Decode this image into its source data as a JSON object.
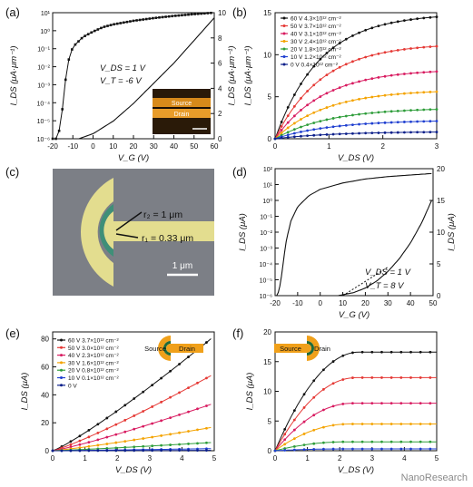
{
  "watermark": "NanoResearch",
  "colors": {
    "black": "#111111",
    "red": "#e53935",
    "magenta": "#d81b60",
    "orange": "#f4a300",
    "green": "#2e9d3a",
    "blue": "#1f3fd0",
    "navy": "#0b1f8a",
    "yellow": "#e3dd8f",
    "teal": "#3f8f78",
    "sem_bg": "#7c7f86",
    "device_orange": "#f0a01a",
    "device_green": "#1f6b3a"
  },
  "chart_data": [
    {
      "id": "a",
      "panel_label": "(a)",
      "type": "line",
      "xlabel": "V_G (V)",
      "ylabel_left": "I_DS (μA·μm⁻¹)",
      "ylabel_right": "I_DS (μA·μm⁻¹)",
      "xlim": [
        -20,
        60
      ],
      "xticks": [
        -20,
        -10,
        0,
        10,
        20,
        30,
        40,
        50,
        60
      ],
      "ylim_left_log": [
        -6,
        1
      ],
      "yticks_left": [
        "10⁻⁶",
        "10⁻⁵",
        "10⁻⁴",
        "10⁻³",
        "10⁻²",
        "10⁻¹",
        "10⁰",
        "10¹"
      ],
      "ylim_right": [
        0,
        10
      ],
      "yticks_right": [
        0,
        2,
        4,
        6,
        8,
        10
      ],
      "annotations": [
        "V_DS = 1 V",
        "V_T = -6 V"
      ],
      "inset_labels": [
        "Source",
        "Drain"
      ],
      "series": [
        {
          "name": "log",
          "x": [
            -20,
            -18,
            -17,
            -16,
            -15,
            -14,
            -12,
            -10,
            -5,
            0,
            5,
            10,
            20,
            30,
            40,
            50,
            60
          ],
          "y_log": [
            -6,
            -6,
            -5.7,
            -5,
            -4.2,
            -3,
            -1.6,
            -0.9,
            -0.35,
            -0.05,
            0.2,
            0.35,
            0.55,
            0.7,
            0.82,
            0.92,
            1.0
          ]
        },
        {
          "name": "linear",
          "x": [
            -7,
            0,
            10,
            20,
            30,
            40,
            50,
            60
          ],
          "y": [
            0,
            0.4,
            1.4,
            2.8,
            4.4,
            6.0,
            7.8,
            9.6
          ]
        }
      ]
    },
    {
      "id": "b",
      "panel_label": "(b)",
      "type": "line",
      "xlabel": "V_DS (V)",
      "ylabel": "I_DS (μA·μm⁻¹)",
      "xlim": [
        0,
        3
      ],
      "xticks": [
        0,
        1,
        2,
        3
      ],
      "ylim": [
        0,
        15
      ],
      "yticks": [
        0,
        5,
        10,
        15
      ],
      "legend": [
        "60 V 4.3×10¹² cm⁻²",
        "50 V 3.7×10¹² cm⁻²",
        "40 V 3.1×10¹² cm⁻²",
        "30 V 2.4×10¹² cm⁻²",
        "20 V 1.8×10¹² cm⁻²",
        "10 V 1.2×10¹² cm⁻²",
        "0 V 0.4×10¹² cm⁻²"
      ],
      "series": [
        {
          "name": "60 V",
          "color": "#111111",
          "sat": 14.5
        },
        {
          "name": "50 V",
          "color": "#e53935",
          "sat": 11.0
        },
        {
          "name": "40 V",
          "color": "#d81b60",
          "sat": 8.0
        },
        {
          "name": "30 V",
          "color": "#f4a300",
          "sat": 5.6
        },
        {
          "name": "20 V",
          "color": "#2e9d3a",
          "sat": 3.5
        },
        {
          "name": "10 V",
          "color": "#1f3fd0",
          "sat": 2.1
        },
        {
          "name": "0 V",
          "color": "#0b1f8a",
          "sat": 0.8
        }
      ]
    },
    {
      "id": "c",
      "panel_label": "(c)",
      "type": "image",
      "labels": [
        "r₂ = 1 μm",
        "r₁ = 0.33 μm",
        "1 μm"
      ]
    },
    {
      "id": "d",
      "panel_label": "(d)",
      "type": "line",
      "xlabel": "V_G (V)",
      "ylabel_left": "I_DS (μA)",
      "ylabel_right": "I_DS (μA)",
      "xlim": [
        -20,
        50
      ],
      "xticks": [
        -20,
        -10,
        0,
        10,
        20,
        30,
        40,
        50
      ],
      "ylim_left_log": [
        -6,
        2
      ],
      "yticks_left": [
        "10⁻⁶",
        "10⁻⁵",
        "10⁻⁴",
        "10⁻³",
        "10⁻²",
        "10⁻¹",
        "10⁰",
        "10¹",
        "10²"
      ],
      "ylim_right": [
        0,
        20
      ],
      "yticks_right": [
        0,
        5,
        10,
        15,
        20
      ],
      "annotations": [
        "V_DS = 1 V",
        "V_T = 8 V"
      ],
      "series": [
        {
          "name": "log",
          "x": [
            -20,
            -19,
            -18,
            -17,
            -16,
            -15,
            -13,
            -10,
            -5,
            0,
            10,
            20,
            30,
            40,
            50
          ],
          "y_log": [
            -6,
            -6,
            -5.5,
            -4.6,
            -3.5,
            -2.5,
            -1.3,
            -0.4,
            0.3,
            0.7,
            1.1,
            1.35,
            1.5,
            1.6,
            1.7
          ]
        },
        {
          "name": "linear",
          "x": [
            8,
            15,
            20,
            25,
            30,
            35,
            40,
            45,
            50
          ],
          "y": [
            0,
            0.5,
            1.2,
            2.3,
            3.8,
            5.8,
            8.3,
            11.5,
            15.5
          ]
        },
        {
          "name": "fit",
          "x": [
            10,
            30
          ],
          "y": [
            0,
            4.5
          ]
        }
      ]
    },
    {
      "id": "e",
      "panel_label": "(e)",
      "type": "line",
      "xlabel": "V_DS (V)",
      "ylabel": "I_DS (μA)",
      "xlim": [
        0,
        5
      ],
      "xticks": [
        0,
        1,
        2,
        3,
        4,
        5
      ],
      "ylim": [
        0,
        85
      ],
      "yticks": [
        0,
        20,
        40,
        60,
        80
      ],
      "legend": [
        "60 V 3.7×10¹² cm⁻²",
        "50 V 3.0×10¹² cm⁻²",
        "40 V 2.3×10¹² cm⁻²",
        "30 V 1.6×10¹² cm⁻²",
        "20 V 0.8×10¹² cm⁻²",
        "10 V 0.1×10¹² cm⁻²",
        "0 V"
      ],
      "device_labels": [
        "Source",
        "Drain"
      ],
      "series": [
        {
          "name": "60 V",
          "color": "#111111",
          "end": 82
        },
        {
          "name": "50 V",
          "color": "#e53935",
          "end": 55
        },
        {
          "name": "40 V",
          "color": "#d81b60",
          "end": 34
        },
        {
          "name": "30 V",
          "color": "#f4a300",
          "end": 17
        },
        {
          "name": "20 V",
          "color": "#2e9d3a",
          "end": 6
        },
        {
          "name": "10 V",
          "color": "#1f3fd0",
          "end": 1.5
        },
        {
          "name": "0 V",
          "color": "#0b1f8a",
          "end": 0.3
        }
      ]
    },
    {
      "id": "f",
      "panel_label": "(f)",
      "type": "line",
      "xlabel": "V_DS (V)",
      "ylabel": "I_DS (μA)",
      "xlim": [
        0,
        5
      ],
      "xticks": [
        0,
        1,
        2,
        3,
        4,
        5
      ],
      "ylim": [
        0,
        20
      ],
      "yticks": [
        0,
        5,
        10,
        15,
        20
      ],
      "device_labels": [
        "Drain",
        "Source"
      ],
      "series": [
        {
          "name": "60 V",
          "color": "#111111",
          "sat": 16.6
        },
        {
          "name": "50 V",
          "color": "#e53935",
          "sat": 12.3
        },
        {
          "name": "40 V",
          "color": "#d81b60",
          "sat": 8.0
        },
        {
          "name": "30 V",
          "color": "#f4a300",
          "sat": 4.5
        },
        {
          "name": "20 V",
          "color": "#2e9d3a",
          "sat": 1.5
        },
        {
          "name": "10 V",
          "color": "#1f3fd0",
          "sat": 0.3
        }
      ]
    }
  ]
}
